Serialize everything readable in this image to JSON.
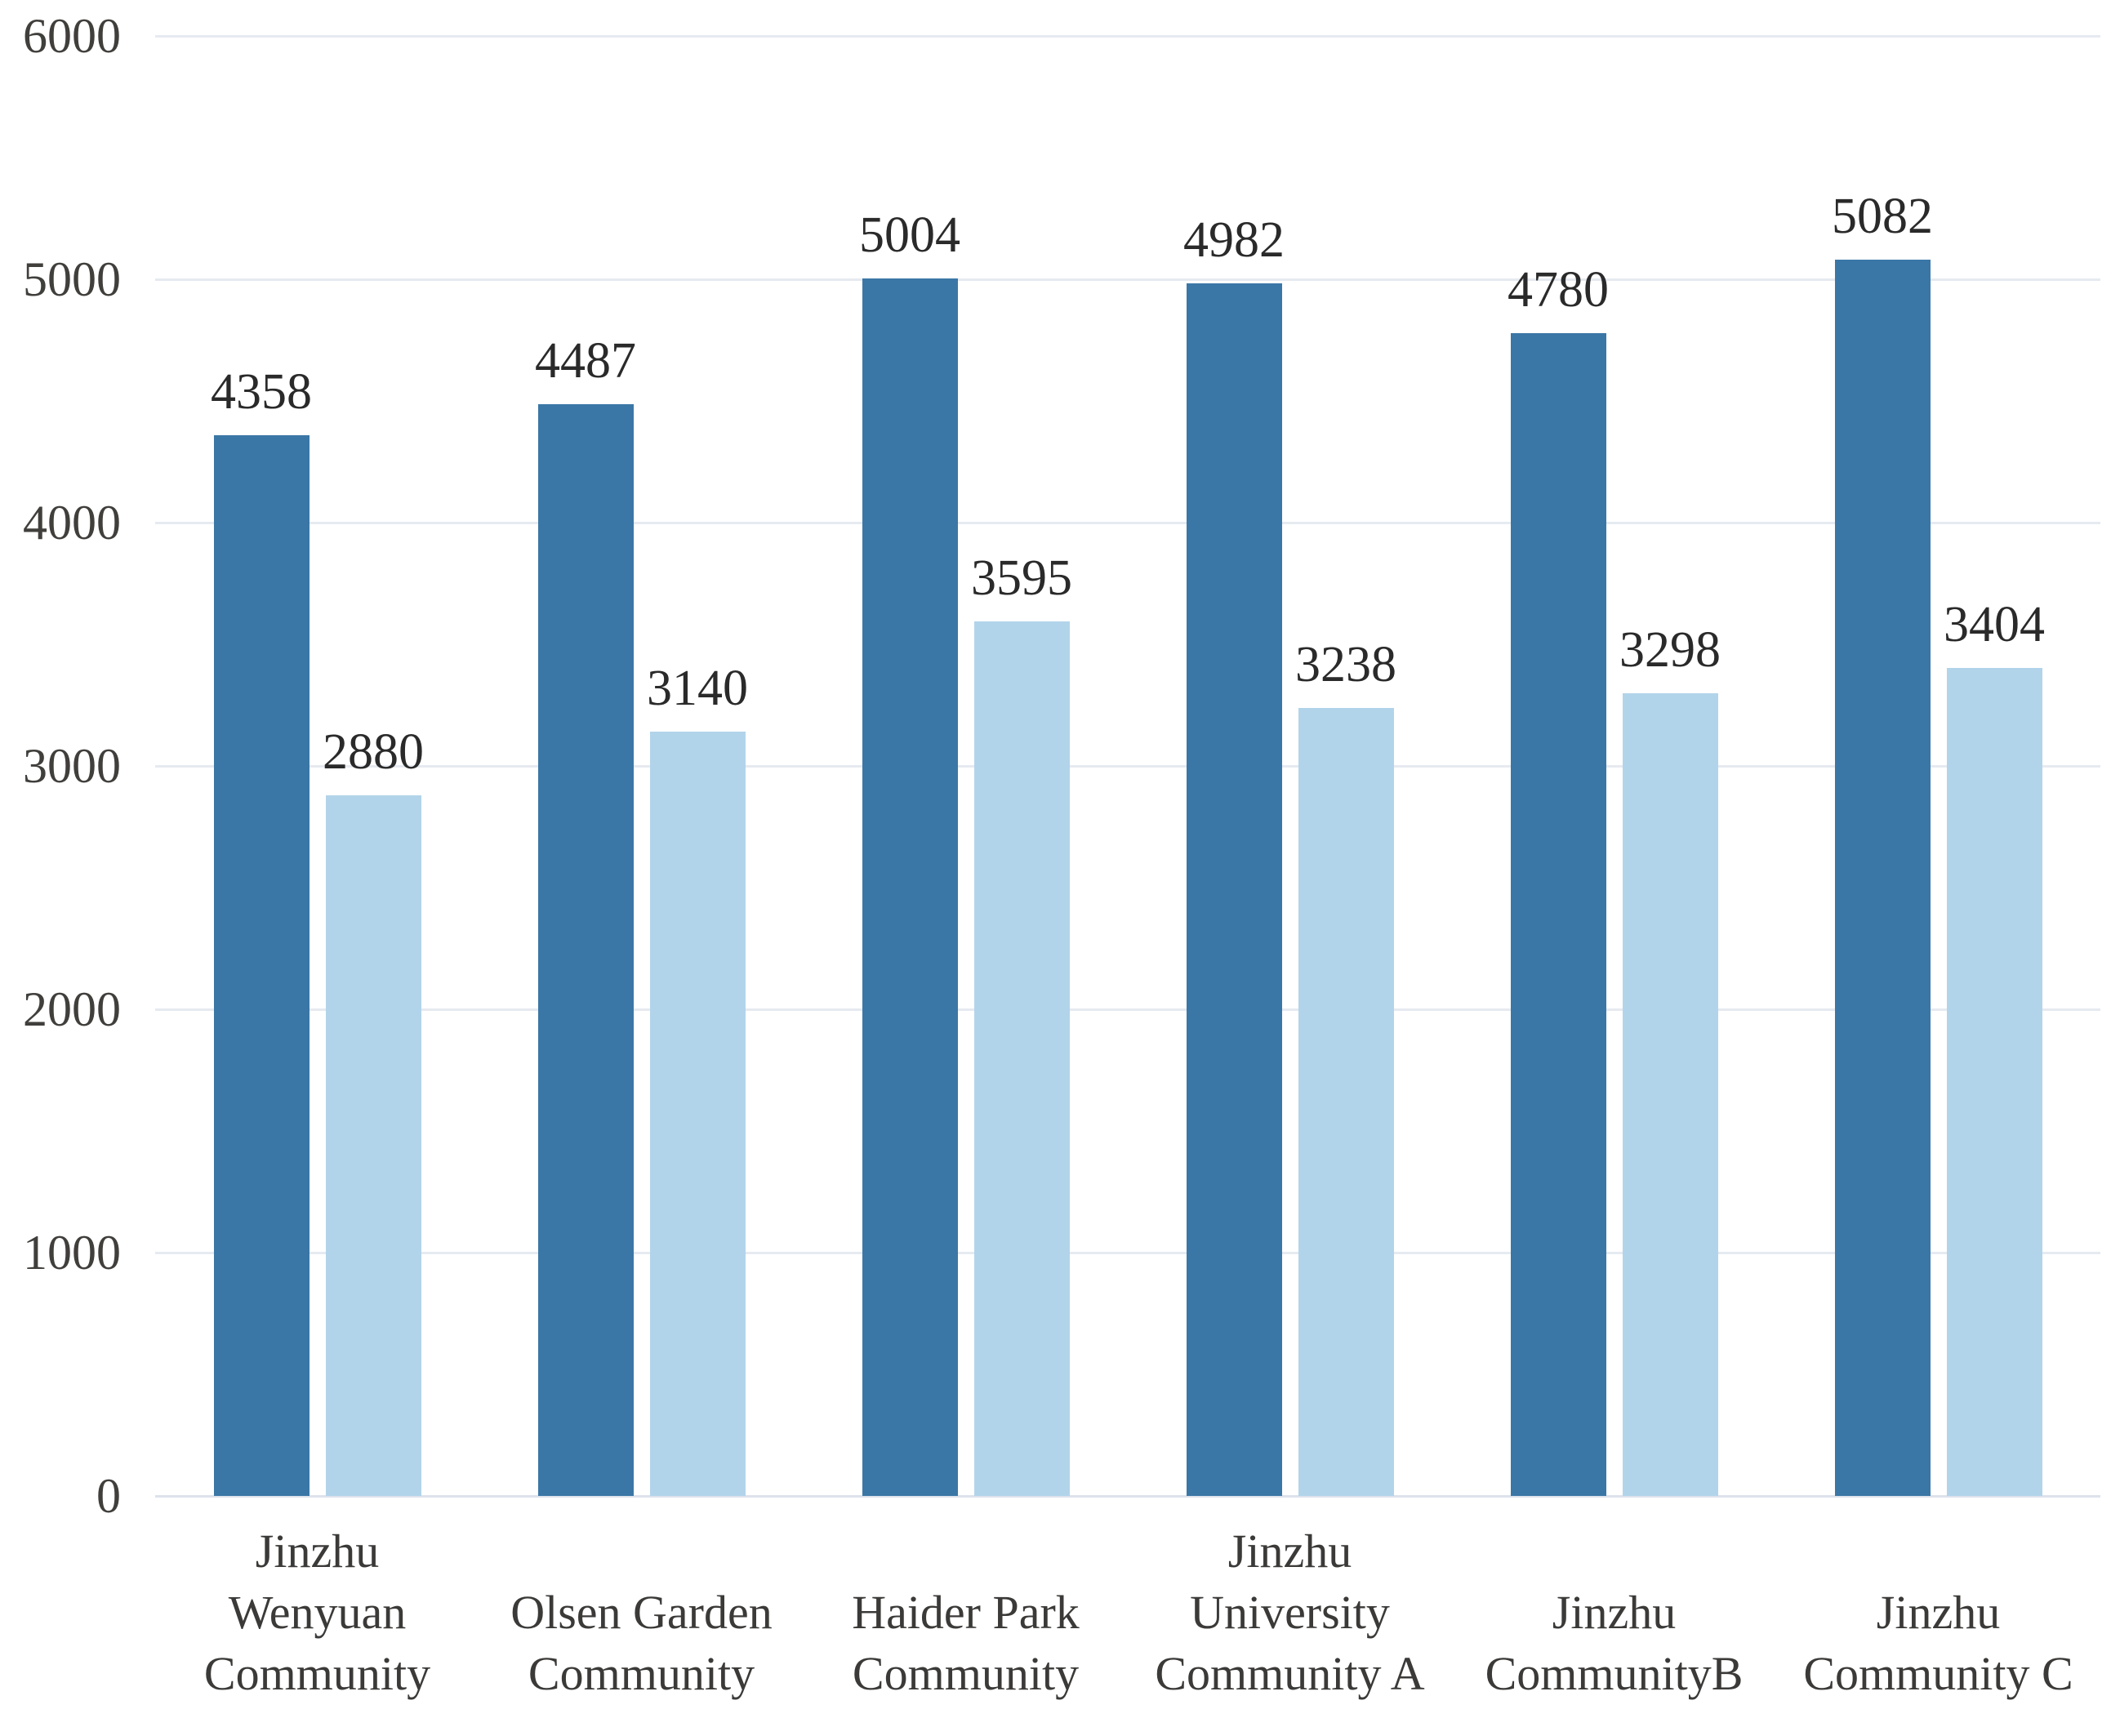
{
  "chart_data": {
    "type": "bar",
    "title": "",
    "categories": [
      "Jinzhu Wenyuan Community",
      "Olsen Garden Community",
      "Haider Park Community",
      "Jinzhu University Community A",
      "Jinzhu CommunityB",
      "Jinzhu Community C"
    ],
    "category_label_lines": [
      [
        "Jinzhu",
        "Wenyuan",
        "Community"
      ],
      [
        "Olsen Garden",
        "Community"
      ],
      [
        "Haider Park",
        "Community"
      ],
      [
        "Jinzhu",
        "University",
        "Community A"
      ],
      [
        "Jinzhu",
        "CommunityB"
      ],
      [
        "Jinzhu",
        "Community C"
      ]
    ],
    "series": [
      {
        "name": "",
        "color": "#3b77a6",
        "values": [
          4358,
          4487,
          5004,
          4982,
          4780,
          5082
        ]
      },
      {
        "name": "",
        "color": "#b2d4ea",
        "values": [
          2880,
          3140,
          3595,
          3238,
          3298,
          3404
        ]
      }
    ],
    "value_labels_shown": true,
    "xlabel": "",
    "ylabel": "",
    "ylim": [
      0,
      6000
    ],
    "yticks": [
      "0",
      "1000",
      "2000",
      "3000",
      "4000",
      "5000",
      "6000"
    ],
    "grid": true,
    "legend_position": "none"
  },
  "colors": {
    "background": "#ffffff",
    "gridline": "#e6eaf1",
    "baseline": "#dde2eb",
    "bar_dark": "#3b77a6",
    "bar_light": "#b2d4ea",
    "ytick_text": "#413f3c",
    "xtick_text": "#3b3a38",
    "value_text": "#2a2a2a"
  }
}
